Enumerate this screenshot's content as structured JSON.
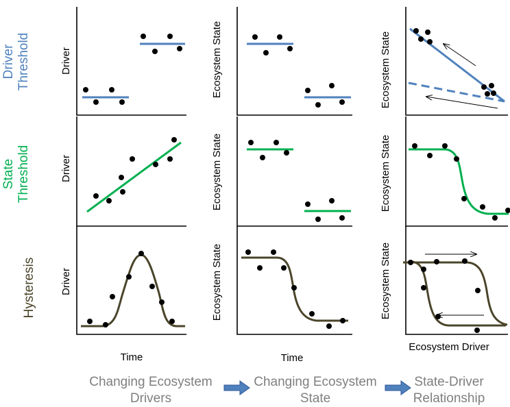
{
  "rows": {
    "driver_threshold": {
      "title_line1": "Driver",
      "title_line2": "Threshold",
      "color": "#4f81bd"
    },
    "state_threshold": {
      "title_line1": "State",
      "title_line2": "Threshold",
      "color": "#00b050"
    },
    "hysteresis": {
      "title": "Hysteresis",
      "color": "#4a452a"
    }
  },
  "axis_labels": {
    "driver": "Driver",
    "ecosystem_state": "Ecosystem State",
    "time": "Time",
    "ecosystem_driver": "Ecosystem Driver"
  },
  "steps": {
    "step1_line1": "Changing Ecosystem",
    "step1_line2": "Drivers",
    "step2_line1": "Changing Ecosystem",
    "step2_line2": "State",
    "step3_line1": "State-Driver",
    "step3_line2": "Relationship"
  },
  "colors": {
    "blue": "#4f81bd",
    "green": "#00b050",
    "olive": "#4a452a",
    "gray": "#7f7f7f",
    "arrow": "#4f81bd"
  }
}
